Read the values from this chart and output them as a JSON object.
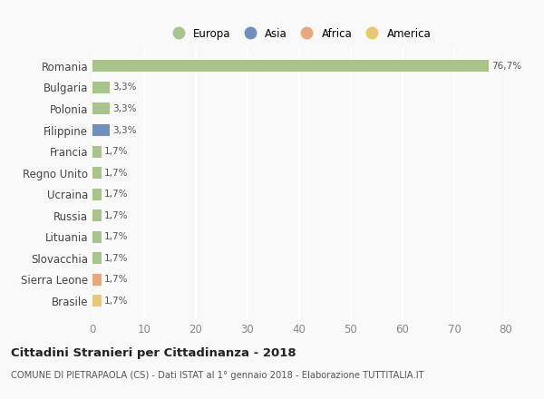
{
  "categories": [
    "Romania",
    "Bulgaria",
    "Polonia",
    "Filippine",
    "Francia",
    "Regno Unito",
    "Ucraina",
    "Russia",
    "Lituania",
    "Slovacchia",
    "Sierra Leone",
    "Brasile"
  ],
  "values": [
    76.7,
    3.3,
    3.3,
    3.3,
    1.7,
    1.7,
    1.7,
    1.7,
    1.7,
    1.7,
    1.7,
    1.7
  ],
  "labels": [
    "76,7%",
    "3,3%",
    "3,3%",
    "3,3%",
    "1,7%",
    "1,7%",
    "1,7%",
    "1,7%",
    "1,7%",
    "1,7%",
    "1,7%",
    "1,7%"
  ],
  "colors": [
    "#a8c48a",
    "#a8c48a",
    "#a8c48a",
    "#7090bb",
    "#a8c48a",
    "#a8c48a",
    "#a8c48a",
    "#a8c48a",
    "#a8c48a",
    "#a8c48a",
    "#e8a87c",
    "#e8c870"
  ],
  "legend_labels": [
    "Europa",
    "Asia",
    "Africa",
    "America"
  ],
  "legend_colors": [
    "#a8c48a",
    "#7090bb",
    "#e8a87c",
    "#e8c870"
  ],
  "xlim": [
    0,
    80
  ],
  "xticks": [
    0,
    10,
    20,
    30,
    40,
    50,
    60,
    70,
    80
  ],
  "title": "Cittadini Stranieri per Cittadinanza - 2018",
  "subtitle": "COMUNE DI PIETRAPAOLA (CS) - Dati ISTAT al 1° gennaio 2018 - Elaborazione TUTTITALIA.IT",
  "background_color": "#f9f9f9",
  "grid_color": "#ffffff",
  "bar_height": 0.55
}
